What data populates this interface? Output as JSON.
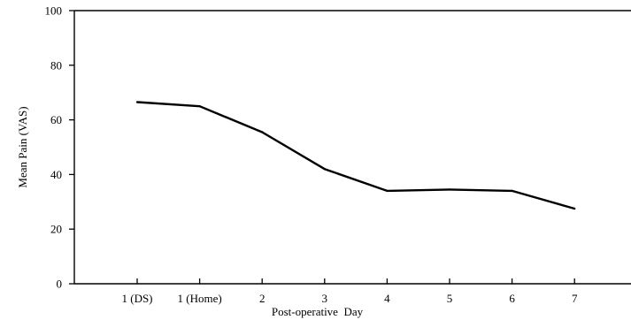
{
  "chart_data": {
    "type": "line",
    "title": "",
    "xlabel": "Post-operative  Day",
    "ylabel": "Mean Pain (VAS)",
    "categories": [
      "1 (DS)",
      "1 (Home)",
      "2",
      "3",
      "4",
      "5",
      "6",
      "7"
    ],
    "series": [
      {
        "values": [
          66.5,
          65,
          55.5,
          42,
          34,
          34.5,
          34,
          27.5
        ]
      }
    ],
    "ylim": [
      0,
      100
    ],
    "yticks": [
      0,
      20,
      40,
      60,
      80,
      100
    ],
    "grid": false,
    "colors": {
      "line": "#000000",
      "axis": "#000000"
    }
  }
}
